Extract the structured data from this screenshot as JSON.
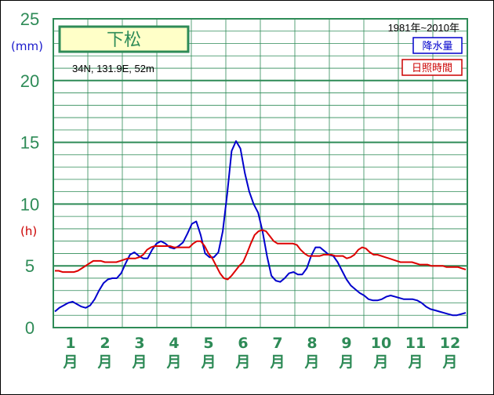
{
  "chart_data": {
    "type": "line",
    "station": "下松",
    "coords": "34N,  131.9E,  52m",
    "period": "1981年~2010年",
    "units": {
      "left": "(mm)",
      "right": "(h)"
    },
    "ylim": [
      0,
      25
    ],
    "yticks": [
      "0",
      "5",
      "10",
      "15",
      "20",
      "25"
    ],
    "months": [
      {
        "num": "1",
        "kanji": "月"
      },
      {
        "num": "2",
        "kanji": "月"
      },
      {
        "num": "3",
        "kanji": "月"
      },
      {
        "num": "4",
        "kanji": "月"
      },
      {
        "num": "5",
        "kanji": "月"
      },
      {
        "num": "6",
        "kanji": "月"
      },
      {
        "num": "7",
        "kanji": "月"
      },
      {
        "num": "8",
        "kanji": "月"
      },
      {
        "num": "9",
        "kanji": "月"
      },
      {
        "num": "10",
        "kanji": "月"
      },
      {
        "num": "11",
        "kanji": "月"
      },
      {
        "num": "12",
        "kanji": "月"
      }
    ],
    "series": [
      {
        "name": "降水量",
        "color": "#0000cc",
        "values": [
          1.3,
          1.6,
          1.8,
          2.0,
          2.1,
          1.9,
          1.7,
          1.6,
          1.8,
          2.3,
          3.0,
          3.6,
          3.9,
          4.0,
          4.0,
          4.4,
          5.2,
          5.9,
          6.1,
          5.8,
          5.6,
          5.6,
          6.3,
          6.8,
          7.0,
          6.8,
          6.5,
          6.4,
          6.6,
          6.9,
          7.6,
          8.4,
          8.6,
          7.5,
          6.0,
          5.7,
          5.7,
          6.1,
          7.8,
          10.8,
          14.3,
          15.1,
          14.5,
          12.5,
          11.0,
          10.0,
          9.3,
          7.8,
          5.8,
          4.2,
          3.8,
          3.7,
          4.0,
          4.4,
          4.5,
          4.3,
          4.3,
          4.8,
          5.8,
          6.5,
          6.5,
          6.2,
          5.9,
          5.8,
          5.3,
          4.6,
          3.9,
          3.4,
          3.1,
          2.8,
          2.6,
          2.3,
          2.2,
          2.2,
          2.3,
          2.5,
          2.6,
          2.5,
          2.4,
          2.3,
          2.3,
          2.3,
          2.2,
          2.0,
          1.7,
          1.5,
          1.4,
          1.3,
          1.2,
          1.1,
          1.0,
          1.0,
          1.1,
          1.2
        ]
      },
      {
        "name": "日照時間",
        "color": "#dd0000",
        "values": [
          4.6,
          4.6,
          4.5,
          4.5,
          4.5,
          4.5,
          4.6,
          4.8,
          5.0,
          5.2,
          5.4,
          5.4,
          5.4,
          5.3,
          5.3,
          5.3,
          5.3,
          5.4,
          5.5,
          5.6,
          5.6,
          5.6,
          5.7,
          5.9,
          6.3,
          6.5,
          6.6,
          6.6,
          6.6,
          6.6,
          6.6,
          6.5,
          6.5,
          6.5,
          6.5,
          6.5,
          6.8,
          7.0,
          7.0,
          6.6,
          6.0,
          5.6,
          5.0,
          4.4,
          4.0,
          3.9,
          4.2,
          4.6,
          5.0,
          5.3,
          6.0,
          6.8,
          7.5,
          7.8,
          7.9,
          7.8,
          7.4,
          7.0,
          6.8,
          6.8,
          6.8,
          6.8,
          6.8,
          6.7,
          6.3,
          6.0,
          5.8,
          5.8,
          5.8,
          5.8,
          5.9,
          5.9,
          5.9,
          5.8,
          5.8,
          5.8,
          5.6,
          5.7,
          5.9,
          6.3,
          6.5,
          6.4,
          6.1,
          5.9,
          5.9,
          5.8,
          5.7,
          5.6,
          5.5,
          5.4,
          5.3,
          5.3,
          5.3,
          5.3,
          5.2,
          5.1,
          5.1,
          5.1,
          5.0,
          5.0,
          5.0,
          5.0,
          4.9,
          4.9,
          4.9,
          4.9,
          4.8,
          4.7
        ]
      }
    ]
  }
}
